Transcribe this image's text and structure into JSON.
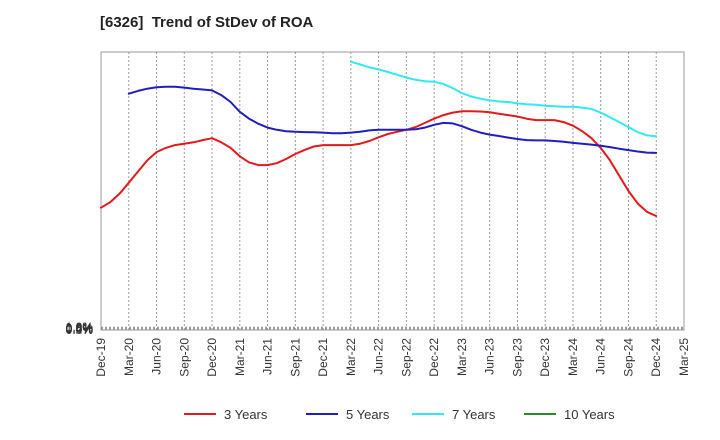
{
  "chart_data": {
    "type": "line",
    "title": "[6326]  Trend of StDev of ROA",
    "xlabel": "",
    "ylabel": "",
    "x_ticks": [
      "Dec-19",
      "Mar-20",
      "Jun-20",
      "Sep-20",
      "Dec-20",
      "Mar-21",
      "Jun-21",
      "Sep-21",
      "Dec-21",
      "Mar-22",
      "Jun-22",
      "Sep-22",
      "Dec-22",
      "Mar-23",
      "Jun-23",
      "Sep-23",
      "Dec-23",
      "Mar-24",
      "Jun-24",
      "Sep-24",
      "Dec-24",
      "Mar-25"
    ],
    "y_ticks": [
      "0.0%",
      "0.2%",
      "0.4%",
      "0.6%",
      "0.8%",
      "1.0%"
    ],
    "ylim": [
      0,
      1.0
    ],
    "y_unit": "%",
    "grid": "vertical dashed",
    "legend_position": "bottom",
    "series": [
      {
        "name": "3 Years",
        "color": "#e31a1c",
        "points": [
          [
            "Dec-19",
            0.44
          ],
          [
            "Jan-20",
            0.46
          ],
          [
            "Feb-20",
            0.49
          ],
          [
            "Mar-20",
            0.53
          ],
          [
            "Apr-20",
            0.57
          ],
          [
            "May-20",
            0.61
          ],
          [
            "Jun-20",
            0.64
          ],
          [
            "Jul-20",
            0.655
          ],
          [
            "Aug-20",
            0.665
          ],
          [
            "Sep-20",
            0.67
          ],
          [
            "Oct-20",
            0.675
          ],
          [
            "Nov-20",
            0.683
          ],
          [
            "Dec-20",
            0.69
          ],
          [
            "Jan-21",
            0.675
          ],
          [
            "Feb-21",
            0.655
          ],
          [
            "Mar-21",
            0.625
          ],
          [
            "Apr-21",
            0.603
          ],
          [
            "May-21",
            0.593
          ],
          [
            "Jun-21",
            0.593
          ],
          [
            "Jul-21",
            0.6
          ],
          [
            "Aug-21",
            0.615
          ],
          [
            "Sep-21",
            0.633
          ],
          [
            "Oct-21",
            0.648
          ],
          [
            "Nov-21",
            0.66
          ],
          [
            "Dec-21",
            0.665
          ],
          [
            "Jan-22",
            0.665
          ],
          [
            "Feb-22",
            0.665
          ],
          [
            "Mar-22",
            0.665
          ],
          [
            "Apr-22",
            0.67
          ],
          [
            "May-22",
            0.68
          ],
          [
            "Jun-22",
            0.693
          ],
          [
            "Jul-22",
            0.705
          ],
          [
            "Aug-22",
            0.713
          ],
          [
            "Sep-22",
            0.72
          ],
          [
            "Oct-22",
            0.73
          ],
          [
            "Nov-22",
            0.745
          ],
          [
            "Dec-22",
            0.76
          ],
          [
            "Jan-23",
            0.773
          ],
          [
            "Feb-23",
            0.782
          ],
          [
            "Mar-23",
            0.787
          ],
          [
            "Apr-23",
            0.787
          ],
          [
            "May-23",
            0.786
          ],
          [
            "Jun-23",
            0.783
          ],
          [
            "Jul-23",
            0.778
          ],
          [
            "Aug-23",
            0.773
          ],
          [
            "Sep-23",
            0.768
          ],
          [
            "Oct-23",
            0.76
          ],
          [
            "Nov-23",
            0.755
          ],
          [
            "Dec-23",
            0.755
          ],
          [
            "Jan-24",
            0.755
          ],
          [
            "Feb-24",
            0.748
          ],
          [
            "Mar-24",
            0.735
          ],
          [
            "Apr-24",
            0.715
          ],
          [
            "May-24",
            0.69
          ],
          [
            "Jun-24",
            0.655
          ],
          [
            "Jul-24",
            0.61
          ],
          [
            "Aug-24",
            0.555
          ],
          [
            "Sep-24",
            0.5
          ],
          [
            "Oct-24",
            0.455
          ],
          [
            "Nov-24",
            0.425
          ],
          [
            "Dec-24",
            0.41
          ]
        ]
      },
      {
        "name": "5 Years",
        "color": "#1f1fbf",
        "points": [
          [
            "Mar-20",
            0.85
          ],
          [
            "Apr-20",
            0.86
          ],
          [
            "May-20",
            0.868
          ],
          [
            "Jun-20",
            0.873
          ],
          [
            "Jul-20",
            0.875
          ],
          [
            "Aug-20",
            0.875
          ],
          [
            "Sep-20",
            0.872
          ],
          [
            "Oct-20",
            0.868
          ],
          [
            "Nov-20",
            0.865
          ],
          [
            "Dec-20",
            0.862
          ],
          [
            "Jan-21",
            0.845
          ],
          [
            "Feb-21",
            0.82
          ],
          [
            "Mar-21",
            0.785
          ],
          [
            "Apr-21",
            0.76
          ],
          [
            "May-21",
            0.742
          ],
          [
            "Jun-21",
            0.728
          ],
          [
            "Jul-21",
            0.72
          ],
          [
            "Aug-21",
            0.715
          ],
          [
            "Sep-21",
            0.713
          ],
          [
            "Oct-21",
            0.712
          ],
          [
            "Nov-21",
            0.711
          ],
          [
            "Dec-21",
            0.71
          ],
          [
            "Jan-22",
            0.708
          ],
          [
            "Feb-22",
            0.708
          ],
          [
            "Mar-22",
            0.71
          ],
          [
            "Apr-22",
            0.713
          ],
          [
            "May-22",
            0.718
          ],
          [
            "Jun-22",
            0.72
          ],
          [
            "Jul-22",
            0.72
          ],
          [
            "Aug-22",
            0.72
          ],
          [
            "Sep-22",
            0.72
          ],
          [
            "Oct-22",
            0.722
          ],
          [
            "Nov-22",
            0.728
          ],
          [
            "Dec-22",
            0.738
          ],
          [
            "Jan-23",
            0.745
          ],
          [
            "Feb-23",
            0.743
          ],
          [
            "Mar-23",
            0.733
          ],
          [
            "Apr-23",
            0.72
          ],
          [
            "May-23",
            0.71
          ],
          [
            "Jun-23",
            0.703
          ],
          [
            "Jul-23",
            0.698
          ],
          [
            "Aug-23",
            0.692
          ],
          [
            "Sep-23",
            0.687
          ],
          [
            "Oct-23",
            0.683
          ],
          [
            "Nov-23",
            0.682
          ],
          [
            "Dec-23",
            0.682
          ],
          [
            "Jan-24",
            0.68
          ],
          [
            "Feb-24",
            0.677
          ],
          [
            "Mar-24",
            0.673
          ],
          [
            "Apr-24",
            0.67
          ],
          [
            "May-24",
            0.667
          ],
          [
            "Jun-24",
            0.663
          ],
          [
            "Jul-24",
            0.658
          ],
          [
            "Aug-24",
            0.652
          ],
          [
            "Sep-24",
            0.647
          ],
          [
            "Oct-24",
            0.642
          ],
          [
            "Nov-24",
            0.638
          ],
          [
            "Dec-24",
            0.637
          ]
        ]
      },
      {
        "name": "7 Years",
        "color": "#33e8f0",
        "points": [
          [
            "Mar-22",
            0.965
          ],
          [
            "Apr-22",
            0.955
          ],
          [
            "May-22",
            0.945
          ],
          [
            "Jun-22",
            0.937
          ],
          [
            "Jul-22",
            0.928
          ],
          [
            "Aug-22",
            0.918
          ],
          [
            "Sep-22",
            0.908
          ],
          [
            "Oct-22",
            0.9
          ],
          [
            "Nov-22",
            0.895
          ],
          [
            "Dec-22",
            0.893
          ],
          [
            "Jan-23",
            0.885
          ],
          [
            "Feb-23",
            0.87
          ],
          [
            "Mar-23",
            0.852
          ],
          [
            "Apr-23",
            0.84
          ],
          [
            "May-23",
            0.832
          ],
          [
            "Jun-23",
            0.826
          ],
          [
            "Jul-23",
            0.822
          ],
          [
            "Aug-23",
            0.82
          ],
          [
            "Sep-23",
            0.815
          ],
          [
            "Oct-23",
            0.812
          ],
          [
            "Nov-23",
            0.81
          ],
          [
            "Dec-23",
            0.807
          ],
          [
            "Jan-24",
            0.805
          ],
          [
            "Feb-24",
            0.803
          ],
          [
            "Mar-24",
            0.803
          ],
          [
            "Apr-24",
            0.8
          ],
          [
            "May-24",
            0.795
          ],
          [
            "Jun-24",
            0.782
          ],
          [
            "Jul-24",
            0.765
          ],
          [
            "Aug-24",
            0.748
          ],
          [
            "Sep-24",
            0.73
          ],
          [
            "Oct-24",
            0.712
          ],
          [
            "Nov-24",
            0.7
          ],
          [
            "Dec-24",
            0.697
          ]
        ]
      },
      {
        "name": "10 Years",
        "color": "#2a8a2a",
        "points": []
      }
    ]
  }
}
